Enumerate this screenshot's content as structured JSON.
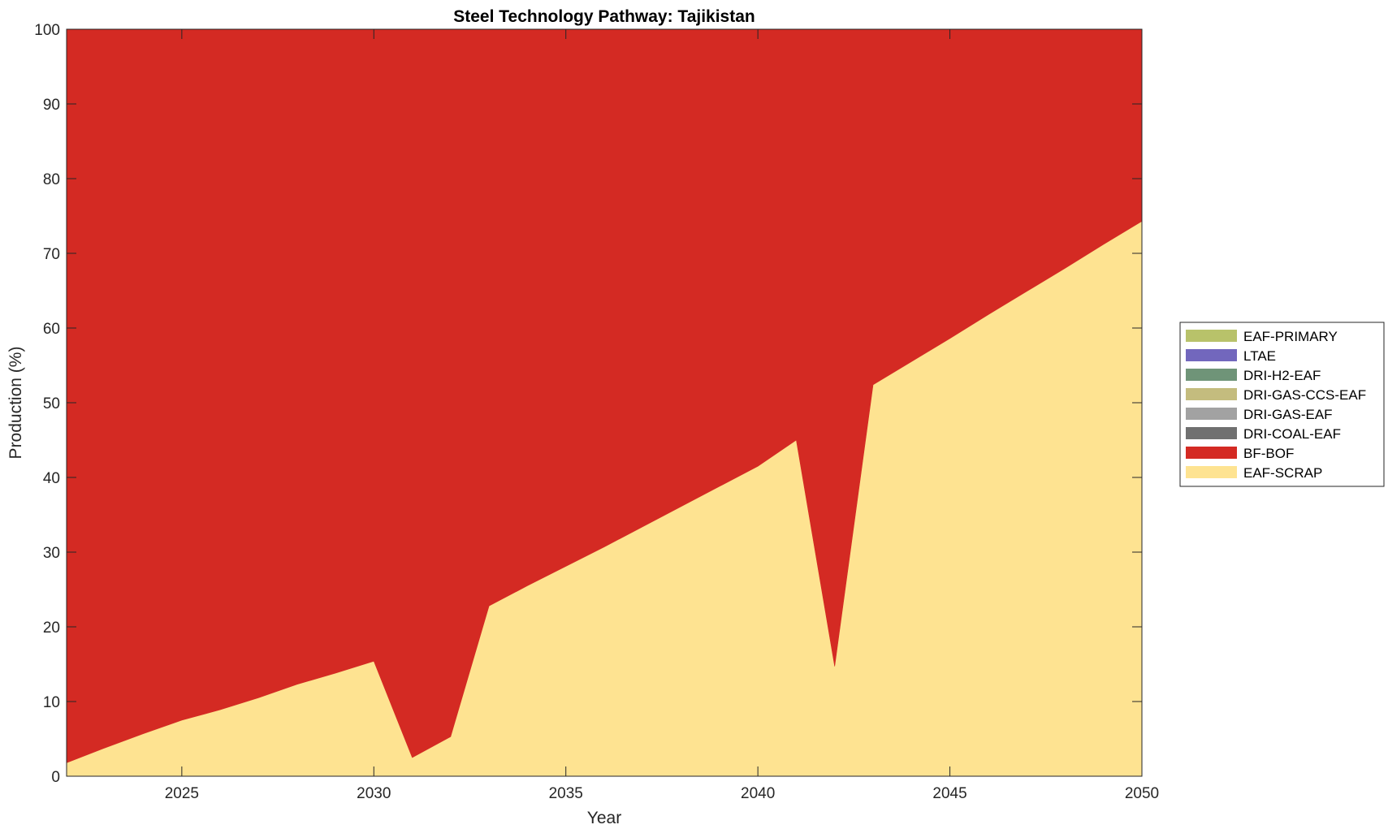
{
  "chart_data": {
    "type": "area",
    "stacked": true,
    "title": "Steel Technology Pathway: Tajikistan",
    "xlabel": "Year",
    "ylabel": "Production (%)",
    "xlim": [
      2022,
      2050
    ],
    "ylim": [
      0,
      100
    ],
    "xticks": [
      2025,
      2030,
      2035,
      2040,
      2045,
      2050
    ],
    "yticks": [
      0,
      10,
      20,
      30,
      40,
      50,
      60,
      70,
      80,
      90,
      100
    ],
    "x": [
      2022,
      2023,
      2024,
      2025,
      2026,
      2027,
      2028,
      2029,
      2030,
      2031,
      2032,
      2033,
      2034,
      2035,
      2036,
      2037,
      2038,
      2039,
      2040,
      2041,
      2042,
      2043,
      2044,
      2045,
      2046,
      2047,
      2048,
      2049,
      2050
    ],
    "series": [
      {
        "name": "EAF-SCRAP",
        "color": "#FEE391",
        "values": [
          1.8,
          3.8,
          5.7,
          7.5,
          8.9,
          10.5,
          12.3,
          13.8,
          15.4,
          2.5,
          5.3,
          22.8,
          25.5,
          28.1,
          30.7,
          33.4,
          36.1,
          38.8,
          41.5,
          45.0,
          14.7,
          52.4,
          55.5,
          58.6,
          61.8,
          64.9,
          68.0,
          71.2,
          74.3
        ]
      },
      {
        "name": "BF-BOF",
        "color": "#D42A23",
        "values": [
          98.2,
          96.2,
          94.3,
          92.5,
          91.1,
          89.5,
          87.7,
          86.2,
          84.6,
          97.5,
          94.7,
          77.2,
          74.5,
          71.9,
          69.3,
          66.6,
          63.9,
          61.2,
          58.5,
          55.0,
          85.3,
          47.6,
          44.5,
          41.4,
          38.2,
          35.1,
          32.0,
          28.8,
          25.7
        ]
      },
      {
        "name": "DRI-COAL-EAF",
        "color": "#707070",
        "values": [
          0,
          0,
          0,
          0,
          0,
          0,
          0,
          0,
          0,
          0,
          0,
          0,
          0,
          0,
          0,
          0,
          0,
          0,
          0,
          0,
          0,
          0,
          0,
          0,
          0,
          0,
          0,
          0,
          0
        ]
      },
      {
        "name": "DRI-GAS-EAF",
        "color": "#A2A2A2",
        "values": [
          0,
          0,
          0,
          0,
          0,
          0,
          0,
          0,
          0,
          0,
          0,
          0,
          0,
          0,
          0,
          0,
          0,
          0,
          0,
          0,
          0,
          0,
          0,
          0,
          0,
          0,
          0,
          0,
          0
        ]
      },
      {
        "name": "DRI-GAS-CCS-EAF",
        "color": "#C4BC7E",
        "values": [
          0,
          0,
          0,
          0,
          0,
          0,
          0,
          0,
          0,
          0,
          0,
          0,
          0,
          0,
          0,
          0,
          0,
          0,
          0,
          0,
          0,
          0,
          0,
          0,
          0,
          0,
          0,
          0,
          0
        ]
      },
      {
        "name": "DRI-H2-EAF",
        "color": "#6F9478",
        "values": [
          0,
          0,
          0,
          0,
          0,
          0,
          0,
          0,
          0,
          0,
          0,
          0,
          0,
          0,
          0,
          0,
          0,
          0,
          0,
          0,
          0,
          0,
          0,
          0,
          0,
          0,
          0,
          0,
          0
        ]
      },
      {
        "name": "LTAE",
        "color": "#7267BD",
        "values": [
          0,
          0,
          0,
          0,
          0,
          0,
          0,
          0,
          0,
          0,
          0,
          0,
          0,
          0,
          0,
          0,
          0,
          0,
          0,
          0,
          0,
          0,
          0,
          0,
          0,
          0,
          0,
          0,
          0
        ]
      },
      {
        "name": "EAF-PRIMARY",
        "color": "#B8C26A",
        "values": [
          0,
          0,
          0,
          0,
          0,
          0,
          0,
          0,
          0,
          0,
          0,
          0,
          0,
          0,
          0,
          0,
          0,
          0,
          0,
          0,
          0,
          0,
          0,
          0,
          0,
          0,
          0,
          0,
          0
        ]
      }
    ],
    "legend": {
      "placement": "right",
      "order": [
        "EAF-PRIMARY",
        "LTAE",
        "DRI-H2-EAF",
        "DRI-GAS-CCS-EAF",
        "DRI-GAS-EAF",
        "DRI-COAL-EAF",
        "BF-BOF",
        "EAF-SCRAP"
      ]
    },
    "grid": false
  }
}
